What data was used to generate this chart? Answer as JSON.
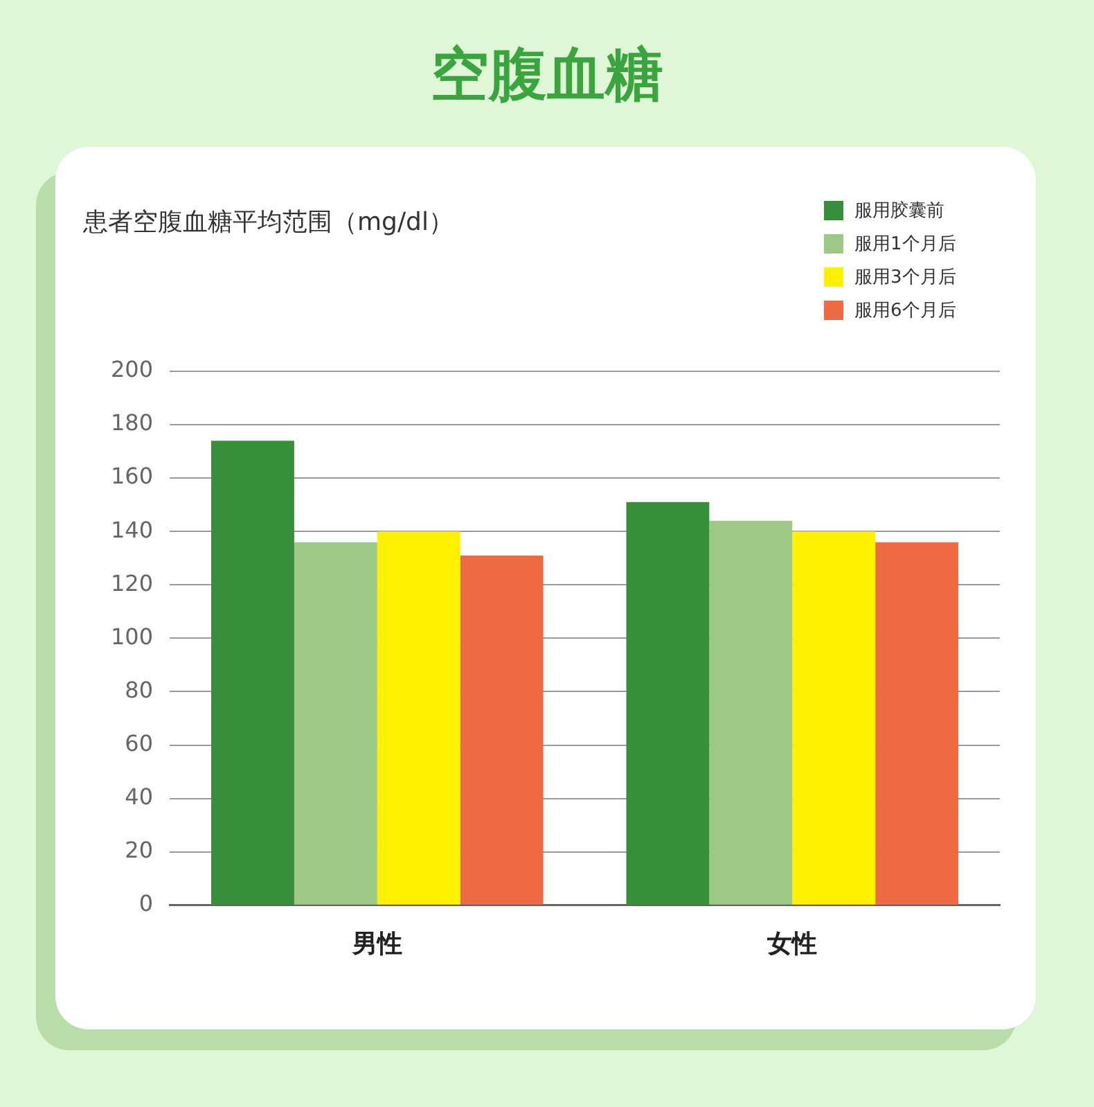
{
  "chart_data": {
    "type": "bar",
    "title": "空腹血糖",
    "subtitle": "患者空腹血糖平均范围（mg/dl）",
    "categories": [
      "男性",
      "女性"
    ],
    "series": [
      {
        "name": "服用胶囊前",
        "color": "#378f3c",
        "values": [
          174,
          151
        ]
      },
      {
        "name": "服用1个月后",
        "color": "#9dc886",
        "values": [
          136,
          144
        ]
      },
      {
        "name": "服用3个月后",
        "color": "#fff100",
        "values": [
          140,
          140
        ]
      },
      {
        "name": "服用6个月后",
        "color": "#ee6b43",
        "values": [
          131,
          136
        ]
      }
    ],
    "ylim": [
      0,
      200
    ],
    "yticks": [
      0,
      20,
      40,
      60,
      80,
      100,
      120,
      140,
      160,
      180,
      200
    ],
    "grid": "y",
    "legend": "top right"
  }
}
